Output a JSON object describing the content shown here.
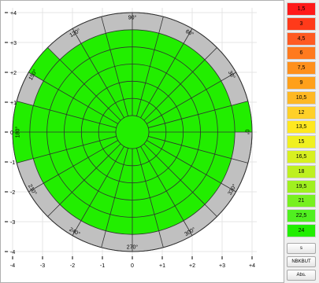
{
  "chart_data": {
    "type": "polar",
    "x_ticks": [
      "-4",
      "-3",
      "-2",
      "-1",
      "0",
      "+1",
      "+2",
      "+3",
      "+4"
    ],
    "y_ticks": [
      "+4",
      "+3",
      "+2",
      "+1",
      "0",
      "-1",
      "-2",
      "-3",
      "-4"
    ],
    "angle_labels": [
      {
        "deg": 0,
        "text": "0°"
      },
      {
        "deg": 30,
        "text": "30°"
      },
      {
        "deg": 60,
        "text": "60°"
      },
      {
        "deg": 90,
        "text": "90°"
      },
      {
        "deg": 120,
        "text": "120°"
      },
      {
        "deg": 150,
        "text": "150°"
      },
      {
        "deg": 180,
        "text": "180°"
      },
      {
        "deg": 210,
        "text": "210°"
      },
      {
        "deg": 240,
        "text": "240°"
      },
      {
        "deg": 270,
        "text": "270°"
      },
      {
        "deg": 300,
        "text": "300°"
      },
      {
        "deg": 330,
        "text": "330°"
      }
    ],
    "ring_count": 6,
    "sector_deg": 15,
    "green_color": "#22ee00",
    "gray_color": "#c0c0c0",
    "outer_ring_fill": [
      {
        "from": 0,
        "to": 15,
        "fill": "green"
      },
      {
        "from": 15,
        "to": 30,
        "fill": "gray"
      },
      {
        "from": 30,
        "to": 45,
        "fill": "gray"
      },
      {
        "from": 45,
        "to": 60,
        "fill": "gray"
      },
      {
        "from": 60,
        "to": 75,
        "fill": "gray"
      },
      {
        "from": 75,
        "to": 90,
        "fill": "gray"
      },
      {
        "from": 90,
        "to": 105,
        "fill": "gray"
      },
      {
        "from": 105,
        "to": 120,
        "fill": "gray"
      },
      {
        "from": 120,
        "to": 135,
        "fill": "gray"
      },
      {
        "from": 135,
        "to": 150,
        "fill": "green"
      },
      {
        "from": 150,
        "to": 165,
        "fill": "gray"
      },
      {
        "from": 165,
        "to": 180,
        "fill": "green"
      },
      {
        "from": 180,
        "to": 195,
        "fill": "green"
      },
      {
        "from": 195,
        "to": 210,
        "fill": "gray"
      },
      {
        "from": 210,
        "to": 225,
        "fill": "gray"
      },
      {
        "from": 225,
        "to": 240,
        "fill": "gray"
      },
      {
        "from": 240,
        "to": 255,
        "fill": "gray"
      },
      {
        "from": 255,
        "to": 270,
        "fill": "gray"
      },
      {
        "from": 270,
        "to": 285,
        "fill": "gray"
      },
      {
        "from": 285,
        "to": 300,
        "fill": "gray"
      },
      {
        "from": 300,
        "to": 315,
        "fill": "gray"
      },
      {
        "from": 315,
        "to": 330,
        "fill": "gray"
      },
      {
        "from": 330,
        "to": 345,
        "fill": "gray"
      },
      {
        "from": 345,
        "to": 360,
        "fill": "gray"
      }
    ]
  },
  "legend": [
    {
      "label": "1,5",
      "color": "#ff1a1a"
    },
    {
      "label": "3",
      "color": "#ff3a1a"
    },
    {
      "label": "4,5",
      "color": "#ff5a22"
    },
    {
      "label": "6",
      "color": "#ff7a1e"
    },
    {
      "label": "7,5",
      "color": "#ff901c"
    },
    {
      "label": "9",
      "color": "#ffa01a"
    },
    {
      "label": "10,5",
      "color": "#ffb824"
    },
    {
      "label": "12",
      "color": "#ffd028"
    },
    {
      "label": "13,5",
      "color": "#ffe820"
    },
    {
      "label": "15",
      "color": "#f0f020"
    },
    {
      "label": "16,5",
      "color": "#d8f020"
    },
    {
      "label": "18",
      "color": "#bef020"
    },
    {
      "label": "19,5",
      "color": "#a0f020"
    },
    {
      "label": "21",
      "color": "#78f020"
    },
    {
      "label": "22,5",
      "color": "#50f020"
    },
    {
      "label": "24",
      "color": "#22ee00"
    }
  ],
  "buttons": {
    "s": "s",
    "nbkbut": "NBKBUT",
    "abs": "Abs."
  }
}
